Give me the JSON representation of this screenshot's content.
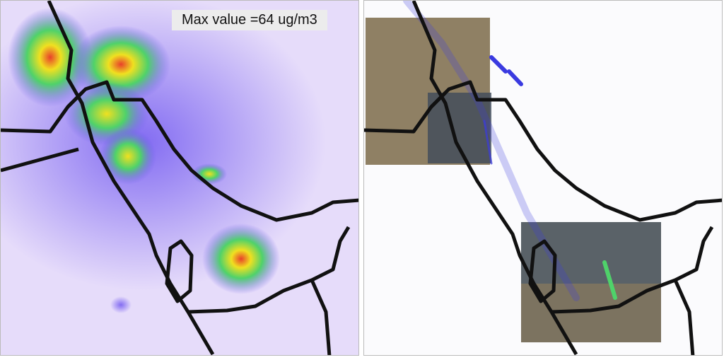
{
  "left_panel": {
    "annotation": "Max value =64 ug/m3",
    "colors": {
      "background": "#d9ccf8",
      "low": "#7a5cf0",
      "mid": "#4fd26a",
      "high": "#f0e020",
      "peak": "#e04020",
      "coast": "#111111"
    }
  },
  "right_panel": {
    "colors": {
      "background": "#ffffff",
      "satellite": "#8a7a5c",
      "plume": "#3a3ae0",
      "coast": "#111111"
    }
  }
}
